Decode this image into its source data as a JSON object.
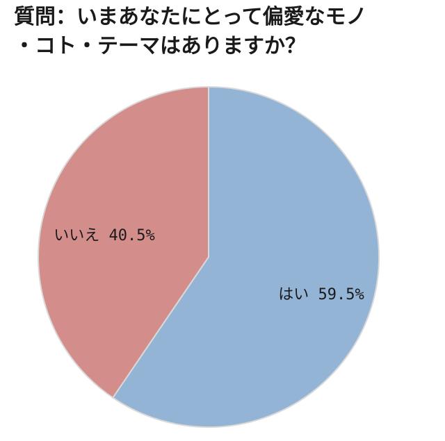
{
  "title_line1": "質問：いまあなたにとって偏愛なモノ",
  "title_line2": "・コト・テーマはありますか？",
  "colors": {
    "yes": "#94b4d6",
    "no": "#d38e8c",
    "stroke": "#d9d9d9"
  },
  "chart_data": {
    "type": "pie",
    "title": "質問：いまあなたにとって偏愛なモノ・コト・テーマはありますか？",
    "slices": [
      {
        "label": "はい",
        "value": 59.5,
        "display": "はい 59.5%"
      },
      {
        "label": "いいえ",
        "value": 40.5,
        "display": "いいえ 40.5%"
      }
    ],
    "start_angle": "12 o'clock",
    "direction": "clockwise"
  }
}
